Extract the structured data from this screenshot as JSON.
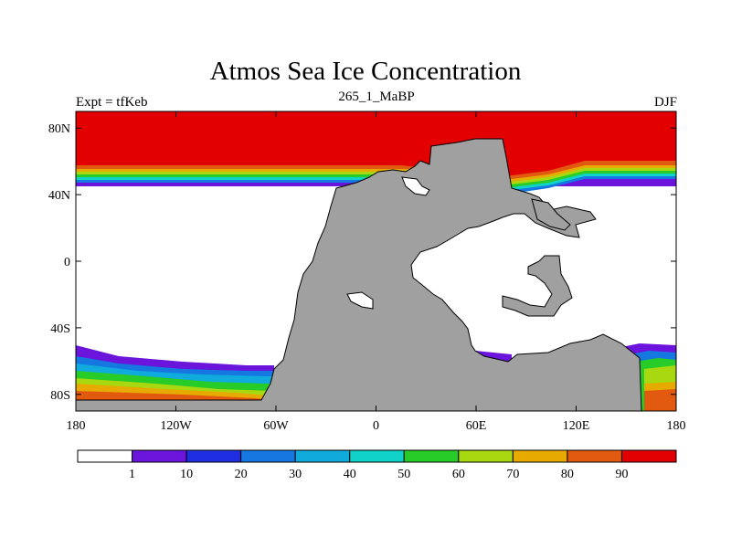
{
  "map": {
    "title": "Atmos Sea Ice Concentration",
    "subtitle": "265_1_MaBP",
    "left_string": "Expt = tfKeb",
    "right_string": "DJF",
    "projection": "cylindrical-equidistant",
    "lon_range": [
      -180,
      180
    ],
    "lat_range": [
      -90,
      90
    ],
    "lon_ticks": [
      {
        "value": -180,
        "label": "180"
      },
      {
        "value": -120,
        "label": "120W"
      },
      {
        "value": -60,
        "label": "60W"
      },
      {
        "value": 0,
        "label": "0"
      },
      {
        "value": 60,
        "label": "60E"
      },
      {
        "value": 120,
        "label": "120E"
      },
      {
        "value": 180,
        "label": "180"
      }
    ],
    "lat_ticks": [
      {
        "value": 80,
        "label": "80N"
      },
      {
        "value": 40,
        "label": "40N"
      },
      {
        "value": 0,
        "label": "0"
      },
      {
        "value": -40,
        "label": "40S"
      },
      {
        "value": -80,
        "label": "80S"
      }
    ],
    "land_color": "#a0a0a0",
    "colorbar": {
      "colors": [
        "#ffffff",
        "#6a14dc",
        "#1f2ee0",
        "#1478e0",
        "#10aadc",
        "#10d2c8",
        "#28cc28",
        "#a8d810",
        "#e6aa00",
        "#e25a10",
        "#e20000"
      ],
      "labels": [
        "1",
        "10",
        "20",
        "30",
        "40",
        "50",
        "60",
        "70",
        "80",
        "90"
      ]
    }
  }
}
